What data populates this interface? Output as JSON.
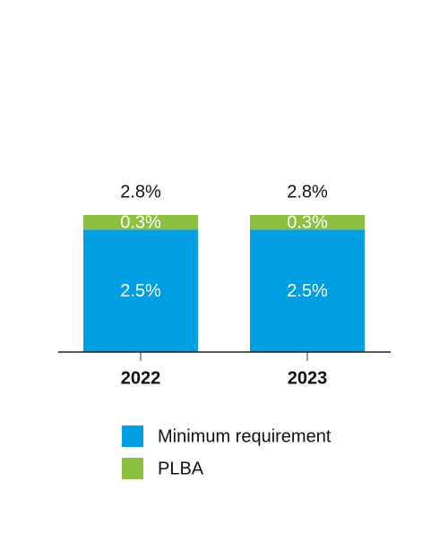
{
  "chart_data": {
    "type": "stacked_bar",
    "categories": [
      "2022",
      "2023"
    ],
    "series": [
      {
        "name": "Minimum requirement",
        "color": "#009fe3",
        "values": [
          2.5,
          2.5
        ],
        "value_labels": [
          "2.5%",
          "2.5%"
        ]
      },
      {
        "name": "PLBA",
        "color": "#8cc043",
        "values": [
          0.3,
          0.3
        ],
        "value_labels": [
          "0.3%",
          "0.3%"
        ]
      }
    ],
    "totals": [
      2.8,
      2.8
    ],
    "total_labels": [
      "2.8%",
      "2.8%"
    ]
  }
}
